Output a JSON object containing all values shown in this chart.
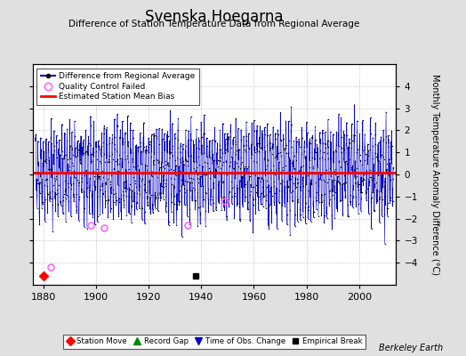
{
  "title": "Svenska Hoegarna",
  "subtitle": "Difference of Station Temperature Data from Regional Average",
  "ylabel": "Monthly Temperature Anomaly Difference (°C)",
  "xlabel_note": "Berkeley Earth",
  "xlim": [
    1876,
    2014
  ],
  "ylim": [
    -5,
    5
  ],
  "yticks": [
    -4,
    -3,
    -2,
    -1,
    0,
    1,
    2,
    3,
    4
  ],
  "ytick_labels_right": [
    "-4",
    "-3",
    "-2",
    "-1",
    "0",
    "1",
    "2",
    "3",
    "4"
  ],
  "xticks": [
    1880,
    1900,
    1920,
    1940,
    1960,
    1980,
    2000
  ],
  "mean_bias": 0.1,
  "seed": 42,
  "start_year": 1877,
  "end_year": 2013,
  "bg_color": "#e0e0e0",
  "plot_bg_color": "#ffffff",
  "line_color": "#0000cc",
  "dot_color": "#000000",
  "bias_color": "#ff0000",
  "qc_color": "#ff66ff",
  "empirical_break_year": 1938,
  "station_move_year": 1880,
  "qc_failed_years": [
    1883,
    1898,
    1903,
    1935,
    1949
  ],
  "qc_failed_values": [
    -4.2,
    -2.3,
    -2.4,
    -2.3,
    -1.2
  ]
}
